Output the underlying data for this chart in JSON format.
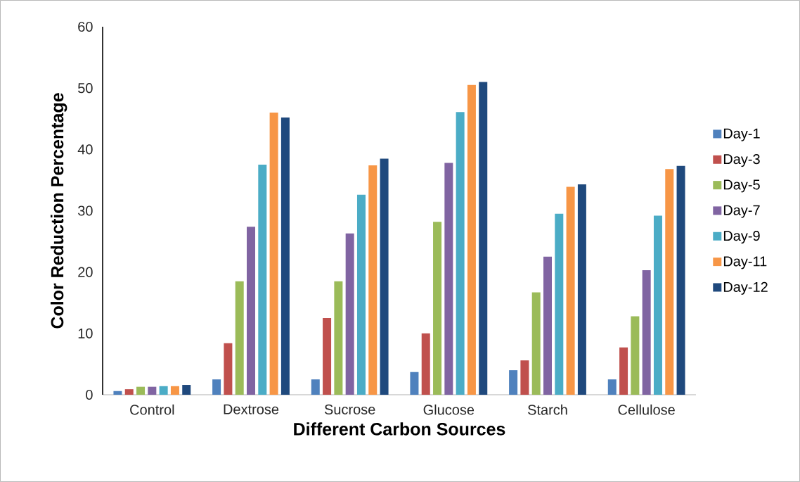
{
  "chart_data": {
    "type": "bar",
    "xlabel": "Different Carbon Sources",
    "ylabel": "Color Reduction Percentage",
    "categories": [
      "Control",
      "Dextrose",
      "Sucrose",
      "Glucose",
      "Starch",
      "Cellulose"
    ],
    "ylim": [
      0,
      60
    ],
    "yticks": [
      0,
      10,
      20,
      30,
      40,
      50,
      60
    ],
    "legend": "right",
    "series": [
      {
        "name": "Day-1",
        "color": "#4f81bd",
        "values": [
          0.6,
          2.5,
          2.5,
          3.7,
          4.0,
          2.5
        ]
      },
      {
        "name": "Day-3",
        "color": "#c0504d",
        "values": [
          0.9,
          8.4,
          12.5,
          10.0,
          5.6,
          7.7
        ]
      },
      {
        "name": "Day-5",
        "color": "#9bbb59",
        "values": [
          1.3,
          18.5,
          18.5,
          28.2,
          16.7,
          12.8
        ]
      },
      {
        "name": "Day-7",
        "color": "#8064a2",
        "values": [
          1.3,
          27.4,
          26.3,
          37.8,
          22.5,
          20.3
        ]
      },
      {
        "name": "Day-9",
        "color": "#4bacc6",
        "values": [
          1.4,
          37.5,
          32.6,
          46.1,
          29.5,
          29.2
        ]
      },
      {
        "name": "Day-11",
        "color": "#f79646",
        "values": [
          1.4,
          46.0,
          37.4,
          50.5,
          33.9,
          36.8
        ]
      },
      {
        "name": "Day-12",
        "color": "#1f497d",
        "values": [
          1.6,
          45.2,
          38.5,
          51.0,
          34.3,
          37.3
        ]
      }
    ]
  }
}
